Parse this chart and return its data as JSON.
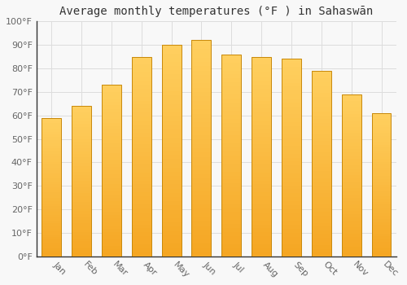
{
  "title": "Average monthly temperatures (°F ) in Sahaswān",
  "months": [
    "Jan",
    "Feb",
    "Mar",
    "Apr",
    "May",
    "Jun",
    "Jul",
    "Aug",
    "Sep",
    "Oct",
    "Nov",
    "Dec"
  ],
  "values": [
    59,
    64,
    73,
    85,
    90,
    92,
    86,
    85,
    84,
    79,
    69,
    61
  ],
  "bar_color_bottom": "#F5A623",
  "bar_color_top": "#FFD060",
  "bar_edge_color": "#C8880A",
  "ylim": [
    0,
    100
  ],
  "yticks": [
    0,
    10,
    20,
    30,
    40,
    50,
    60,
    70,
    80,
    90,
    100
  ],
  "ytick_labels": [
    "0°F",
    "10°F",
    "20°F",
    "30°F",
    "40°F",
    "50°F",
    "60°F",
    "70°F",
    "80°F",
    "90°F",
    "100°F"
  ],
  "background_color": "#f8f8f8",
  "grid_color": "#dddddd",
  "title_fontsize": 10,
  "tick_fontsize": 8,
  "bar_width": 0.65,
  "label_rotation": -45,
  "label_ha": "left"
}
